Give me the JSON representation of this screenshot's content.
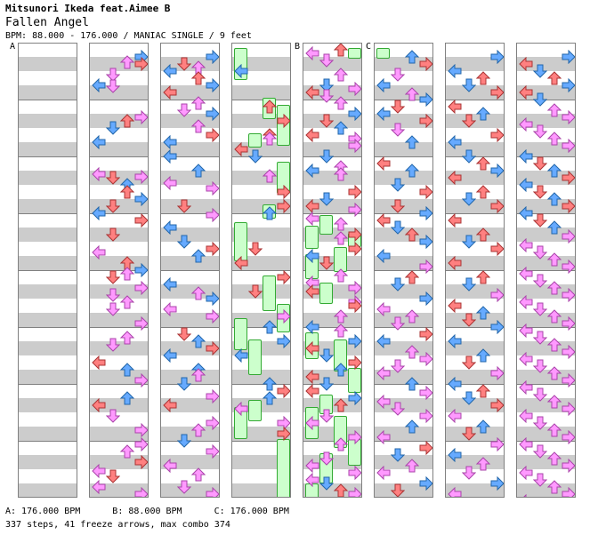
{
  "header": {
    "artist": "Mitsunori Ikeda feat.Aimee B",
    "title": "Fallen Angel",
    "info": "BPM: 88.000 - 176.000 / MANIAC SINGLE / 9 feet"
  },
  "sections": [
    {
      "label": "A",
      "column": 0
    },
    {
      "label": "B",
      "column": 4
    },
    {
      "label": "C",
      "column": 5
    }
  ],
  "footer": {
    "bpm_a": "A: 176.000 BPM",
    "bpm_b": "B: 88.000 BPM",
    "bpm_c": "C: 176.000 BPM",
    "summary": "337 steps, 41 freeze arrows, max combo 374"
  },
  "colors": {
    "quarter": "#ff8080",
    "eighth": "#66aaff",
    "sixteenth": "#ff99ff",
    "freeze": "#ccffcc",
    "strip": "#cccccc"
  },
  "columns": [
    {
      "arrows": [],
      "freezes": []
    },
    {
      "arrows": [
        [
          "R",
          8
        ],
        [
          "U",
          14
        ],
        [
          "R",
          16
        ],
        [
          "D",
          28
        ],
        [
          "L",
          40
        ],
        [
          "D",
          41
        ],
        [
          "R",
          76
        ],
        [
          "U",
          80
        ],
        [
          "D",
          88
        ],
        [
          "L",
          104
        ],
        [
          "L",
          140
        ],
        [
          "R",
          143
        ],
        [
          "D",
          144
        ],
        [
          "U",
          152
        ],
        [
          "U",
          160
        ],
        [
          "R",
          168
        ],
        [
          "D",
          176
        ],
        [
          "L",
          184
        ],
        [
          "R",
          192
        ],
        [
          "D",
          208
        ],
        [
          "L",
          228
        ],
        [
          "U",
          240
        ],
        [
          "R",
          248
        ],
        [
          "U",
          252
        ],
        [
          "D",
          256
        ],
        [
          "R",
          268
        ],
        [
          "D",
          276
        ],
        [
          "U",
          284
        ],
        [
          "D",
          292
        ],
        [
          "R",
          308
        ],
        [
          "U",
          324
        ],
        [
          "D",
          332
        ],
        [
          "L",
          352
        ],
        [
          "U",
          360
        ],
        [
          "R",
          372
        ],
        [
          "U",
          392
        ],
        [
          "L",
          400
        ],
        [
          "D",
          412
        ],
        [
          "R",
          428
        ],
        [
          "R",
          444
        ],
        [
          "U",
          452
        ],
        [
          "R",
          464
        ],
        [
          "L",
          474
        ],
        [
          "D",
          480
        ],
        [
          "L",
          492
        ],
        [
          "R",
          500
        ]
      ],
      "freezes": []
    },
    {
      "arrows": [
        [
          "R",
          8
        ],
        [
          "D",
          16
        ],
        [
          "U",
          20
        ],
        [
          "L",
          24
        ],
        [
          "U",
          32
        ],
        [
          "R",
          40
        ],
        [
          "L",
          48
        ],
        [
          "U",
          60
        ],
        [
          "D",
          68
        ],
        [
          "R",
          72
        ],
        [
          "U",
          86
        ],
        [
          "R",
          96
        ],
        [
          "L",
          104
        ],
        [
          "L",
          120
        ],
        [
          "U",
          136
        ],
        [
          "L",
          150
        ],
        [
          "R",
          156
        ],
        [
          "D",
          176
        ],
        [
          "R",
          186
        ],
        [
          "L",
          200
        ],
        [
          "D",
          216
        ],
        [
          "R",
          224
        ],
        [
          "U",
          232
        ],
        [
          "L",
          264
        ],
        [
          "U",
          274
        ],
        [
          "R",
          280
        ],
        [
          "L",
          292
        ],
        [
          "R",
          300
        ],
        [
          "D",
          320
        ],
        [
          "U",
          328
        ],
        [
          "R",
          336
        ],
        [
          "L",
          344
        ],
        [
          "U",
          360
        ],
        [
          "U",
          366
        ],
        [
          "D",
          376
        ],
        [
          "R",
          390
        ],
        [
          "L",
          400
        ],
        [
          "R",
          420
        ],
        [
          "U",
          428
        ],
        [
          "D",
          440
        ],
        [
          "R",
          452
        ],
        [
          "L",
          468
        ],
        [
          "U",
          478
        ],
        [
          "D",
          492
        ],
        [
          "R",
          500
        ]
      ],
      "freezes": []
    },
    {
      "arrows": [
        [
          "L",
          24
        ],
        [
          "U",
          64
        ],
        [
          "R",
          80
        ],
        [
          "U",
          96
        ],
        [
          "U",
          100
        ],
        [
          "L",
          112
        ],
        [
          "D",
          120
        ],
        [
          "U",
          142
        ],
        [
          "R",
          160
        ],
        [
          "R",
          176
        ],
        [
          "U",
          184
        ],
        [
          "D",
          224
        ],
        [
          "L",
          240
        ],
        [
          "R",
          256
        ],
        [
          "D",
          272
        ],
        [
          "R",
          300
        ],
        [
          "U",
          312
        ],
        [
          "R",
          328
        ],
        [
          "L",
          344
        ],
        [
          "U",
          376
        ],
        [
          "R",
          384
        ],
        [
          "U",
          392
        ],
        [
          "L",
          404
        ],
        [
          "R",
          420
        ],
        [
          "R",
          432
        ]
      ],
      "freezes": [
        [
          0,
          0,
          36
        ],
        [
          2,
          56,
          80
        ],
        [
          1,
          96,
          112
        ],
        [
          3,
          64,
          110
        ],
        [
          3,
          128,
          164
        ],
        [
          2,
          176,
          192
        ],
        [
          0,
          196,
          240
        ],
        [
          2,
          256,
          296
        ],
        [
          3,
          288,
          320
        ],
        [
          0,
          304,
          340
        ],
        [
          1,
          328,
          368
        ],
        [
          1,
          396,
          420
        ],
        [
          0,
          404,
          440
        ],
        [
          3,
          440,
          520
        ]
      ]
    },
    {
      "arrows": [
        [
          "U",
          0
        ],
        [
          "L",
          4
        ],
        [
          "D",
          12
        ],
        [
          "U",
          28
        ],
        [
          "D",
          40
        ],
        [
          "R",
          44
        ],
        [
          "L",
          48
        ],
        [
          "D",
          52
        ],
        [
          "U",
          60
        ],
        [
          "R",
          72
        ],
        [
          "D",
          80
        ],
        [
          "U",
          88
        ],
        [
          "L",
          96
        ],
        [
          "R",
          100
        ],
        [
          "R",
          108
        ],
        [
          "D",
          120
        ],
        [
          "U",
          132
        ],
        [
          "L",
          136
        ],
        [
          "U",
          140
        ],
        [
          "R",
          160
        ],
        [
          "D",
          168
        ],
        [
          "L",
          176
        ],
        [
          "R",
          180
        ],
        [
          "L",
          190
        ],
        [
          "U",
          196
        ],
        [
          "R",
          208
        ],
        [
          "U",
          212
        ],
        [
          "R",
          224
        ],
        [
          "L",
          232
        ],
        [
          "D",
          240
        ],
        [
          "U",
          254
        ],
        [
          "L",
          262
        ],
        [
          "R",
          268
        ],
        [
          "L",
          272
        ],
        [
          "R",
          284
        ],
        [
          "R",
          288
        ],
        [
          "U",
          300
        ],
        [
          "L",
          312
        ],
        [
          "U",
          316
        ],
        [
          "R",
          328
        ],
        [
          "L",
          336
        ],
        [
          "D",
          344
        ],
        [
          "R",
          352
        ],
        [
          "U",
          360
        ],
        [
          "L",
          368
        ],
        [
          "D",
          376
        ],
        [
          "L",
          384
        ],
        [
          "R",
          392
        ],
        [
          "U",
          400
        ],
        [
          "D",
          412
        ],
        [
          "L",
          420
        ],
        [
          "R",
          436
        ],
        [
          "U",
          444
        ],
        [
          "D",
          460
        ],
        [
          "L",
          468
        ],
        [
          "R",
          476
        ],
        [
          "L",
          484
        ],
        [
          "D",
          488
        ],
        [
          "U",
          496
        ],
        [
          "R",
          500
        ]
      ],
      "freezes": [
        [
          3,
          0,
          12
        ],
        [
          1,
          188,
          210
        ],
        [
          0,
          200,
          226
        ],
        [
          3,
          208,
          224
        ],
        [
          2,
          224,
          252
        ],
        [
          0,
          232,
          260
        ],
        [
          1,
          264,
          288
        ],
        [
          0,
          320,
          350
        ],
        [
          2,
          328,
          364
        ],
        [
          3,
          360,
          388
        ],
        [
          1,
          390,
          412
        ],
        [
          0,
          404,
          440
        ],
        [
          2,
          414,
          450
        ],
        [
          3,
          440,
          470
        ],
        [
          1,
          456,
          490
        ],
        [
          0,
          490,
          520
        ]
      ]
    },
    {
      "arrows": [
        [
          "U",
          8
        ],
        [
          "R",
          16
        ],
        [
          "D",
          28
        ],
        [
          "L",
          40
        ],
        [
          "U",
          50
        ],
        [
          "R",
          56
        ],
        [
          "D",
          64
        ],
        [
          "L",
          72
        ],
        [
          "R",
          80
        ],
        [
          "D",
          90
        ],
        [
          "U",
          104
        ],
        [
          "L",
          128
        ],
        [
          "U",
          136
        ],
        [
          "D",
          152
        ],
        [
          "R",
          160
        ],
        [
          "D",
          176
        ],
        [
          "R",
          184
        ],
        [
          "L",
          192
        ],
        [
          "D",
          200
        ],
        [
          "U",
          208
        ],
        [
          "R",
          216
        ],
        [
          "L",
          232
        ],
        [
          "R",
          244
        ],
        [
          "U",
          256
        ],
        [
          "D",
          264
        ],
        [
          "R",
          280
        ],
        [
          "L",
          292
        ],
        [
          "U",
          300
        ],
        [
          "D",
          308
        ],
        [
          "R",
          320
        ],
        [
          "L",
          328
        ],
        [
          "U",
          340
        ],
        [
          "R",
          348
        ],
        [
          "D",
          356
        ],
        [
          "L",
          364
        ],
        [
          "U",
          376
        ],
        [
          "R",
          386
        ],
        [
          "L",
          396
        ],
        [
          "D",
          404
        ],
        [
          "R",
          412
        ],
        [
          "U",
          424
        ],
        [
          "L",
          436
        ],
        [
          "R",
          448
        ],
        [
          "D",
          456
        ],
        [
          "U",
          468
        ],
        [
          "L",
          476
        ],
        [
          "R",
          488
        ],
        [
          "D",
          496
        ]
      ],
      "freezes": [
        [
          0,
          0,
          12
        ]
      ]
    },
    {
      "arrows": [
        [
          "R",
          8
        ],
        [
          "L",
          24
        ],
        [
          "U",
          32
        ],
        [
          "D",
          40
        ],
        [
          "R",
          48
        ],
        [
          "L",
          64
        ],
        [
          "U",
          72
        ],
        [
          "D",
          80
        ],
        [
          "R",
          96
        ],
        [
          "L",
          104
        ],
        [
          "D",
          120
        ],
        [
          "U",
          128
        ],
        [
          "R",
          136
        ],
        [
          "L",
          144
        ],
        [
          "U",
          160
        ],
        [
          "D",
          168
        ],
        [
          "R",
          176
        ],
        [
          "L",
          192
        ],
        [
          "U",
          208
        ],
        [
          "D",
          216
        ],
        [
          "R",
          224
        ],
        [
          "L",
          240
        ],
        [
          "U",
          256
        ],
        [
          "D",
          264
        ],
        [
          "R",
          276
        ],
        [
          "L",
          288
        ],
        [
          "U",
          296
        ],
        [
          "D",
          304
        ],
        [
          "R",
          312
        ],
        [
          "L",
          328
        ],
        [
          "U",
          344
        ],
        [
          "D",
          352
        ],
        [
          "R",
          364
        ],
        [
          "L",
          376
        ],
        [
          "U",
          384
        ],
        [
          "D",
          392
        ],
        [
          "R",
          400
        ],
        [
          "L",
          412
        ],
        [
          "U",
          424
        ],
        [
          "D",
          432
        ],
        [
          "R",
          444
        ],
        [
          "L",
          456
        ],
        [
          "U",
          466
        ],
        [
          "D",
          476
        ],
        [
          "R",
          488
        ],
        [
          "L",
          500
        ]
      ],
      "freezes": []
    },
    {
      "arrows": [
        [
          "R",
          8
        ],
        [
          "L",
          16
        ],
        [
          "D",
          24
        ],
        [
          "U",
          32
        ],
        [
          "R",
          40
        ],
        [
          "L",
          48
        ],
        [
          "D",
          56
        ],
        [
          "U",
          68
        ],
        [
          "R",
          76
        ],
        [
          "L",
          84
        ],
        [
          "D",
          92
        ],
        [
          "U",
          100
        ],
        [
          "R",
          108
        ],
        [
          "L",
          120
        ],
        [
          "D",
          128
        ],
        [
          "U",
          136
        ],
        [
          "R",
          144
        ],
        [
          "L",
          152
        ],
        [
          "D",
          160
        ],
        [
          "U",
          168
        ],
        [
          "R",
          176
        ],
        [
          "L",
          184
        ],
        [
          "D",
          192
        ],
        [
          "U",
          200
        ],
        [
          "R",
          210
        ],
        [
          "L",
          220
        ],
        [
          "D",
          228
        ],
        [
          "U",
          236
        ],
        [
          "R",
          244
        ],
        [
          "L",
          252
        ],
        [
          "D",
          260
        ],
        [
          "U",
          268
        ],
        [
          "R",
          276
        ],
        [
          "L",
          284
        ],
        [
          "D",
          292
        ],
        [
          "U",
          300
        ],
        [
          "R",
          308
        ],
        [
          "L",
          316
        ],
        [
          "D",
          324
        ],
        [
          "U",
          332
        ],
        [
          "R",
          340
        ],
        [
          "L",
          348
        ],
        [
          "D",
          356
        ],
        [
          "U",
          364
        ],
        [
          "R",
          372
        ],
        [
          "L",
          380
        ],
        [
          "D",
          388
        ],
        [
          "U",
          396
        ],
        [
          "R",
          404
        ],
        [
          "L",
          412
        ],
        [
          "D",
          420
        ],
        [
          "U",
          428
        ],
        [
          "R",
          436
        ],
        [
          "L",
          444
        ],
        [
          "D",
          452
        ],
        [
          "U",
          460
        ],
        [
          "R",
          468
        ],
        [
          "L",
          476
        ],
        [
          "D",
          484
        ],
        [
          "U",
          492
        ],
        [
          "R",
          500
        ],
        [
          "L",
          508
        ]
      ],
      "freezes": []
    }
  ]
}
